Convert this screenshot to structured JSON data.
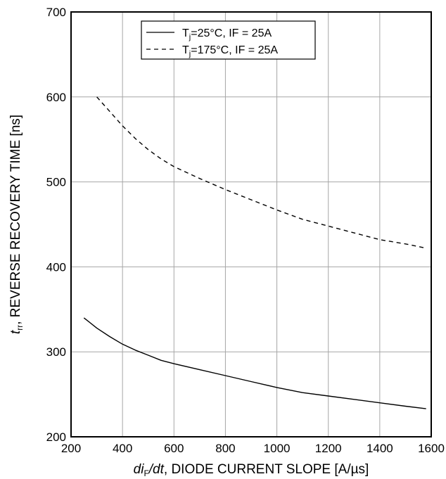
{
  "chart_data": {
    "type": "line",
    "title": "",
    "xlabel": {
      "italic_prefix": "di",
      "subscript": "F",
      "italic_suffix": "/dt",
      "rest": ", DIODE CURRENT SLOPE [A/µs]"
    },
    "ylabel": {
      "italic": "t",
      "subscript": "rr",
      "rest": ", REVERSE RECOVERY TIME [ns]"
    },
    "xlim": [
      200,
      1600
    ],
    "ylim": [
      200,
      700
    ],
    "x_ticks": [
      "200",
      "400",
      "600",
      "800",
      "1000",
      "1200",
      "1400",
      "1600"
    ],
    "y_ticks": [
      "200",
      "300",
      "400",
      "500",
      "600",
      "700"
    ],
    "grid": true,
    "legend_position": "top-center",
    "series": [
      {
        "name_main": "T",
        "name_sub": "j",
        "name_rest": "=25°C, IF = 25A",
        "style": "solid",
        "color": "#000000",
        "points": [
          [
            250,
            340
          ],
          [
            300,
            328
          ],
          [
            350,
            318
          ],
          [
            400,
            309
          ],
          [
            450,
            302
          ],
          [
            500,
            296
          ],
          [
            550,
            290
          ],
          [
            600,
            286
          ],
          [
            700,
            279
          ],
          [
            800,
            272
          ],
          [
            900,
            265
          ],
          [
            1000,
            258
          ],
          [
            1100,
            252
          ],
          [
            1200,
            248
          ],
          [
            1300,
            244
          ],
          [
            1400,
            240
          ],
          [
            1500,
            236
          ],
          [
            1580,
            233
          ]
        ]
      },
      {
        "name_main": "T",
        "name_sub": "j",
        "name_rest": "=175°C, IF = 25A",
        "style": "dashed",
        "color": "#000000",
        "points": [
          [
            300,
            600
          ],
          [
            350,
            583
          ],
          [
            400,
            566
          ],
          [
            450,
            551
          ],
          [
            500,
            538
          ],
          [
            550,
            527
          ],
          [
            600,
            518
          ],
          [
            700,
            504
          ],
          [
            800,
            491
          ],
          [
            900,
            479
          ],
          [
            1000,
            467
          ],
          [
            1100,
            456
          ],
          [
            1200,
            448
          ],
          [
            1300,
            440
          ],
          [
            1400,
            432
          ],
          [
            1500,
            427
          ],
          [
            1580,
            422
          ]
        ]
      }
    ]
  }
}
